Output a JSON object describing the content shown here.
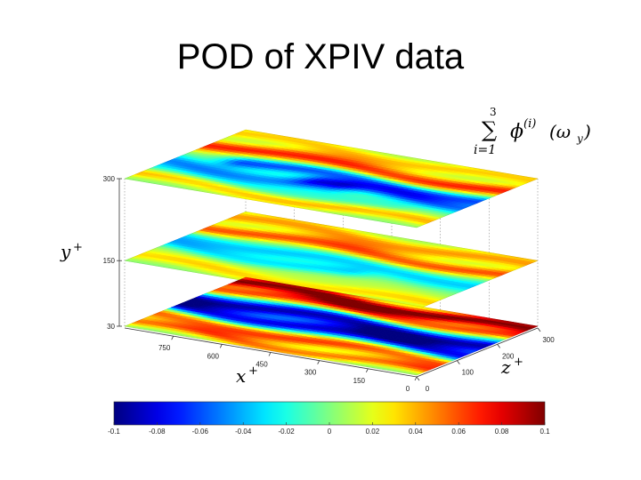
{
  "title": "POD of XPIV data",
  "formula": {
    "sum_top": "3",
    "sum_symbol": "∑",
    "sum_bottom": "i=1",
    "body": "ϕ",
    "superscript": "(i)",
    "argument": "(ω",
    "argument_sub": "y",
    "argument_close": ")"
  },
  "chart_data": {
    "type": "heatmap",
    "title": "POD of XPIV data",
    "axes": {
      "x": {
        "label": "x",
        "label_sup": "+",
        "range": [
          0,
          900
        ],
        "ticks": [
          "750",
          "600",
          "450",
          "300",
          "150",
          "0"
        ],
        "tick_values": [
          750,
          600,
          450,
          300,
          150,
          0
        ]
      },
      "y": {
        "label": "y",
        "label_sup": "+",
        "range": [
          30,
          300
        ],
        "ticks": [
          "300",
          "150",
          "30"
        ],
        "tick_values": [
          300,
          150,
          30
        ]
      },
      "z": {
        "label": "z",
        "label_sup": "+",
        "range": [
          0,
          300
        ],
        "ticks": [
          "300",
          "200",
          "100",
          "0"
        ],
        "tick_values": [
          300,
          200,
          100,
          0
        ]
      }
    },
    "slices_y": [
      300,
      150,
      30
    ],
    "colorbar": {
      "colormap": "jet",
      "range": [
        -0.1,
        0.1
      ],
      "ticks": [
        "-0.1",
        "-0.08",
        "-0.06",
        "-0.04",
        "-0.02",
        "0",
        "0.02",
        "0.04",
        "0.06",
        "0.08",
        "0.1"
      ],
      "tick_values": [
        -0.1,
        -0.08,
        -0.06,
        -0.04,
        -0.02,
        0,
        0.02,
        0.04,
        0.06,
        0.08,
        0.1
      ]
    },
    "planes": [
      {
        "y": 300,
        "streaks": [
          {
            "z": 0.93,
            "x_from": 0.0,
            "x_to": 1.0,
            "amp": 0.035,
            "width": 0.09
          },
          {
            "z": 0.72,
            "x_from": 0.0,
            "x_to": 1.0,
            "amp": 0.07,
            "width": 0.1
          },
          {
            "z": 0.55,
            "x_from": 0.2,
            "x_to": 1.0,
            "amp": -0.06,
            "width": 0.09
          },
          {
            "z": 0.42,
            "x_from": 0.5,
            "x_to": 1.0,
            "amp": -0.05,
            "width": 0.08
          },
          {
            "z": 0.36,
            "x_from": 0.0,
            "x_to": 0.55,
            "amp": -0.045,
            "width": 0.1
          },
          {
            "z": 0.22,
            "x_from": 0.0,
            "x_to": 0.8,
            "amp": -0.015,
            "width": 0.1
          },
          {
            "z": 0.1,
            "x_from": 0.0,
            "x_to": 1.0,
            "amp": 0.04,
            "width": 0.08
          }
        ]
      },
      {
        "y": 150,
        "streaks": [
          {
            "z": 0.9,
            "x_from": 0.0,
            "x_to": 1.0,
            "amp": 0.045,
            "width": 0.1
          },
          {
            "z": 0.7,
            "x_from": 0.0,
            "x_to": 1.0,
            "amp": 0.06,
            "width": 0.09
          },
          {
            "z": 0.5,
            "x_from": 0.0,
            "x_to": 1.0,
            "amp": -0.035,
            "width": 0.1
          },
          {
            "z": 0.35,
            "x_from": 0.0,
            "x_to": 0.6,
            "amp": -0.03,
            "width": 0.08
          },
          {
            "z": 0.22,
            "x_from": 0.0,
            "x_to": 1.0,
            "amp": 0.01,
            "width": 0.1
          },
          {
            "z": 0.1,
            "x_from": 0.0,
            "x_to": 1.0,
            "amp": 0.03,
            "width": 0.08
          }
        ]
      },
      {
        "y": 30,
        "streaks": [
          {
            "z": 0.92,
            "x_from": 0.0,
            "x_to": 1.0,
            "amp": 0.1,
            "width": 0.09
          },
          {
            "z": 0.78,
            "x_from": 0.0,
            "x_to": 1.0,
            "amp": 0.06,
            "width": 0.08
          },
          {
            "z": 0.6,
            "x_from": 0.0,
            "x_to": 1.0,
            "amp": -0.09,
            "width": 0.11
          },
          {
            "z": 0.42,
            "x_from": 0.0,
            "x_to": 1.0,
            "amp": -0.08,
            "width": 0.1
          },
          {
            "z": 0.25,
            "x_from": 0.0,
            "x_to": 1.0,
            "amp": 0.065,
            "width": 0.1
          },
          {
            "z": 0.08,
            "x_from": 0.0,
            "x_to": 1.0,
            "amp": 0.05,
            "width": 0.07
          }
        ]
      }
    ]
  }
}
